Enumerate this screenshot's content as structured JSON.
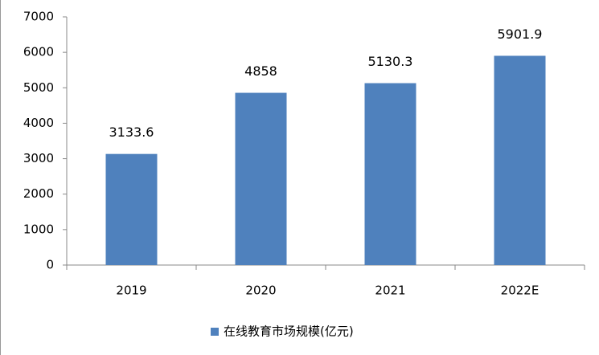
{
  "chart_data": {
    "type": "bar",
    "categories": [
      "2019",
      "2020",
      "2021",
      "2022E"
    ],
    "series": [
      {
        "name": "在线教育市场规模(亿元)",
        "color": "#4f81bd",
        "values": [
          3133.6,
          4858,
          5130.3,
          5901.9
        ]
      }
    ],
    "ylim": [
      0,
      7000
    ],
    "yticks": [
      0,
      1000,
      2000,
      3000,
      4000,
      5000,
      6000,
      7000
    ],
    "legend": "bottom"
  }
}
